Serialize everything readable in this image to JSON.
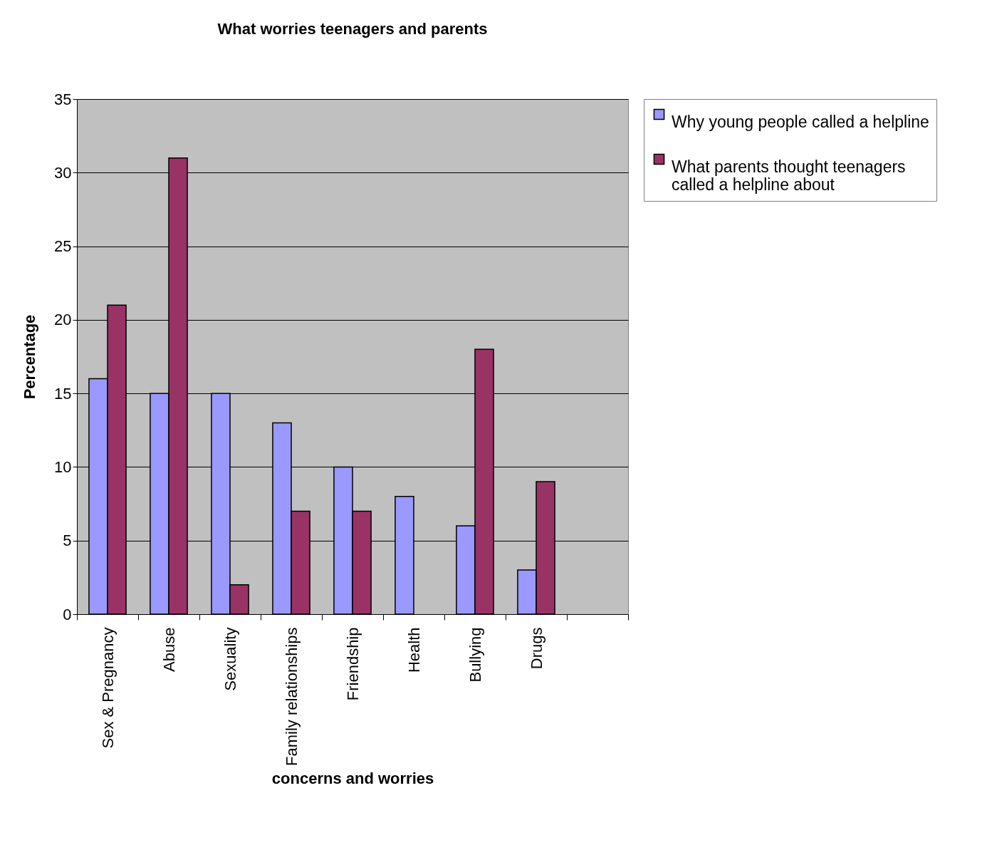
{
  "chart_data": {
    "type": "bar",
    "title": "What worries teenagers and parents",
    "xlabel": "concerns and worries",
    "ylabel": "Percentage",
    "categories": [
      "Sex & Pregnancy",
      "Abuse",
      "Sexuality",
      "Family relationships",
      "Friendship",
      "Health",
      "Bullying",
      "Drugs",
      null
    ],
    "series": [
      {
        "name": "Why young people called a helpline",
        "color": "#9999ff",
        "values": [
          16,
          15,
          15,
          13,
          10,
          8,
          6,
          3,
          null
        ]
      },
      {
        "name": "What parents thought teenagers called a helpline about",
        "color": "#993366",
        "values": [
          21,
          31,
          2,
          7,
          7,
          null,
          18,
          9,
          null
        ]
      }
    ],
    "ylim": [
      0,
      35
    ],
    "yticks": [
      0,
      5,
      10,
      15,
      20,
      25,
      30,
      35
    ],
    "grid": "y",
    "legend": "right"
  }
}
